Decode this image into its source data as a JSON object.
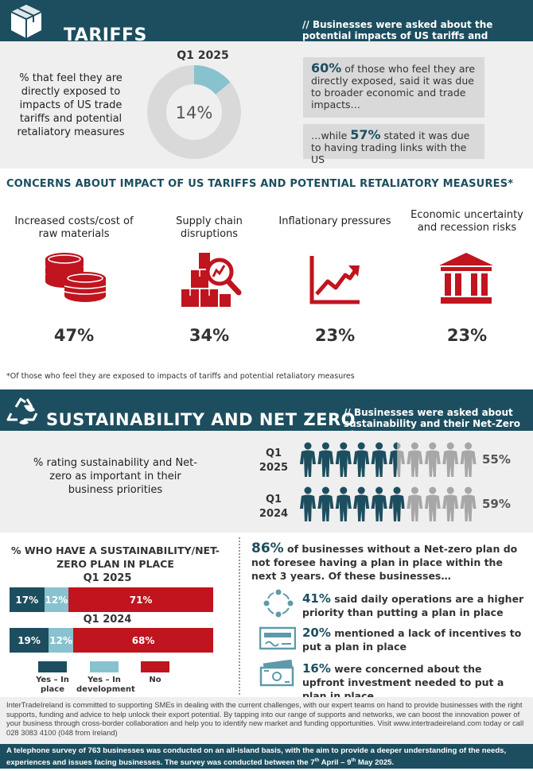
{
  "colors": {
    "teal": "#1c4e5f",
    "red": "#c0141e",
    "light_blue": "#89c2cf",
    "grey_person": "#a7a7a7",
    "grey_bg": "#efefef"
  },
  "tariffs": {
    "title": "TARIFFS",
    "note": "// Businesses were asked about the potential impacts of US tariffs and retaliatory measures",
    "donut_label": "Q1 2025",
    "donut_value": "14%",
    "donut_fraction": 0.14,
    "exposed_text": "% that feel they are directly exposed to impacts of US trade tariffs and potential retaliatory measures",
    "box1_pct": "60%",
    "box1_text": " of those who feel they are directly exposed, said it was due to broader economic and trade impacts…",
    "box2_prefix": "…while ",
    "box2_pct": "57%",
    "box2_text": " stated it was due to having trading links with the US"
  },
  "concerns": {
    "title": "CONCERNS ABOUT IMPACT OF US TARIFFS AND POTENTIAL RETALIATORY MEASURES*",
    "items": [
      {
        "label": "Increased costs/cost of raw materials",
        "value": "47%",
        "icon": "coins-icon"
      },
      {
        "label": "Supply chain disruptions",
        "value": "34%",
        "icon": "supply-chain-icon"
      },
      {
        "label": "Inflationary pressures",
        "value": "23%",
        "icon": "rising-chart-icon"
      },
      {
        "label": "Economic uncertainty and recession risks",
        "value": "23%",
        "icon": "bank-icon"
      }
    ],
    "footnote": "*Of those who feel they are exposed to impacts of tariffs and potential retaliatory measures"
  },
  "sustainability": {
    "title": "SUSTAINABILITY AND NET ZERO",
    "note": "// Businesses were asked about sustainability and their Net-Zero plan",
    "rating_text": "% rating sustainability and Net-zero as important in their business priorities",
    "rows": [
      {
        "period": "Q1 2025",
        "value": "55%",
        "fraction": 0.55
      },
      {
        "period": "Q1 2024",
        "value": "59%",
        "fraction": 0.59
      }
    ]
  },
  "plan": {
    "title": "% WHO HAVE A SUSTAINABILITY/NET-ZERO PLAN IN PLACE",
    "rows": [
      {
        "period": "Q1 2025",
        "yes": 17,
        "dev": 12,
        "no": 71,
        "yes_label": "17%",
        "dev_label": "12%",
        "no_label": "71%"
      },
      {
        "period": "Q1 2024",
        "yes": 19,
        "dev": 12,
        "no": 68,
        "yes_label": "19%",
        "dev_label": "12%",
        "no_label": "68%"
      }
    ],
    "legend": [
      {
        "label": "Yes – In place"
      },
      {
        "label": "Yes – In development"
      },
      {
        "label": "No"
      }
    ]
  },
  "no_plan": {
    "pct": "86%",
    "text": " of businesses without a Net-zero plan do not foresee having a plan in place within the next 3 years. Of these businesses…",
    "reasons": [
      {
        "pct": "41%",
        "text": " said daily operations are a higher priority than putting a plan in place",
        "icon": "cycle-icon"
      },
      {
        "pct": "20%",
        "text": " mentioned a lack of incentives to put a plan in place",
        "icon": "cheque-icon"
      },
      {
        "pct": "16%",
        "text": " were concerned about the upfront investment needed to put a plan in place",
        "icon": "money-icon"
      }
    ]
  },
  "footer": {
    "about": "InterTradeIreland is committed to supporting SMEs in dealing with the current challenges, with our expert teams on hand to provide businesses with the right supports, funding and advice to help unlock their export potential. By tapping into our range of supports and networks, we can boost the innovation power of your business through cross-border collaboration and help you to identify new market and funding opportunities. Visit www.intertradeireland.com today or call 028 3083 4100 (048 from Ireland)",
    "survey_a": "A telephone survey of 763 businesses was conducted on an all-island basis, with the aim to provide a deeper understanding of the needs, experiences and issues facing businesses.  The survey was conducted between the 7",
    "sup1": "th",
    "survey_b": " April – 9",
    "sup2": "th",
    "survey_c": " May 2025."
  }
}
